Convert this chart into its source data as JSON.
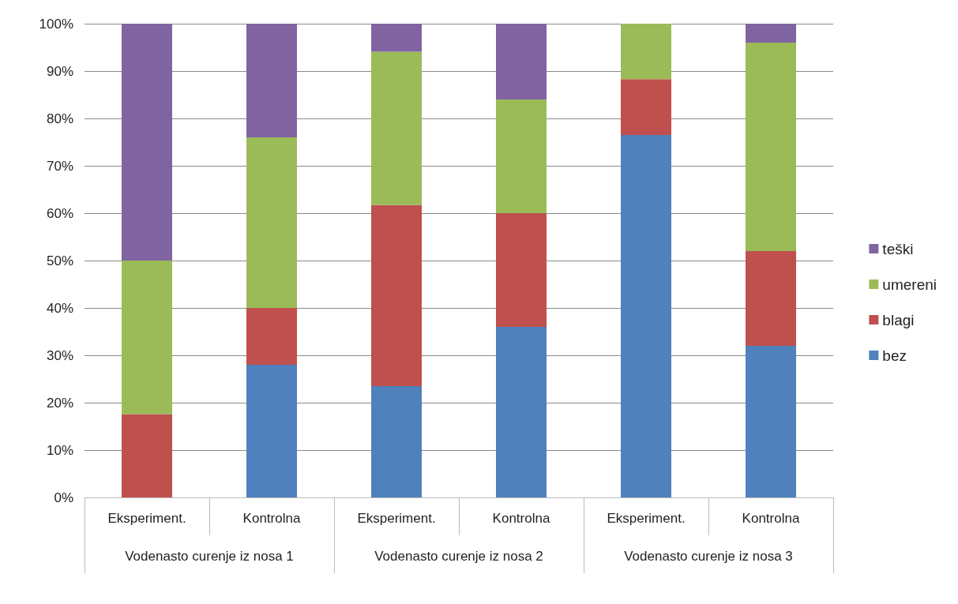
{
  "chart_data": {
    "type": "bar",
    "stacked": true,
    "categories": [
      "Eksperiment.",
      "Kontrolna",
      "Eksperiment.",
      "Kontrolna",
      "Eksperiment.",
      "Kontrolna"
    ],
    "annotations": [
      "Vodenasto curenje iz nosa 1",
      "Vodenasto curenje iz nosa 2",
      "Vodenasto curenje iz nosa 3"
    ],
    "series": [
      {
        "name": "bez",
        "color": "#4f81bd",
        "values": [
          0,
          28,
          23.5,
          36,
          76.5,
          32
        ]
      },
      {
        "name": "blagi",
        "color": "#c0504d",
        "values": [
          17.6,
          12,
          38.2,
          24,
          11.8,
          20
        ]
      },
      {
        "name": "umereni",
        "color": "#9bbb59",
        "values": [
          32.4,
          36,
          32.4,
          24,
          11.7,
          44
        ]
      },
      {
        "name": "teški",
        "color": "#8064a2",
        "values": [
          50,
          24,
          5.9,
          16,
          0,
          4
        ]
      }
    ],
    "ylim": [
      0,
      100
    ],
    "yticks": [
      {
        "value": 0,
        "label": "0%"
      },
      {
        "value": 10,
        "label": "10%"
      },
      {
        "value": 20,
        "label": "20%"
      },
      {
        "value": 30,
        "label": "30%"
      },
      {
        "value": 40,
        "label": "40%"
      },
      {
        "value": 50,
        "label": "50%"
      },
      {
        "value": 60,
        "label": "60%"
      },
      {
        "value": 70,
        "label": "70%"
      },
      {
        "value": 80,
        "label": "80%"
      },
      {
        "value": 90,
        "label": "90%"
      },
      {
        "value": 100,
        "label": "100%"
      }
    ],
    "grid": "y",
    "legend": "right"
  }
}
